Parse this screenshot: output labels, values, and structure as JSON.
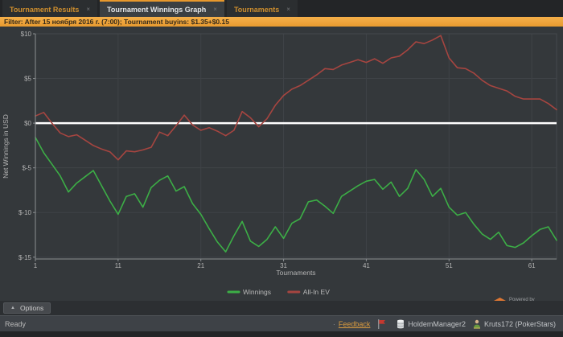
{
  "tabs": [
    {
      "label": "Tournament Results",
      "close": "×",
      "active": false
    },
    {
      "label": "Tournament Winnings Graph",
      "close": "×",
      "active": true
    },
    {
      "label": "Tournaments",
      "close": "×",
      "active": false
    }
  ],
  "filter_bar": {
    "text": "Filter: After 15 ноября 2016 г. (7:00); Tournament buyins: $1.35+$0.15"
  },
  "chart_data": {
    "type": "line",
    "title": "",
    "xlabel": "Tournaments",
    "ylabel": "Net Winnings in USD",
    "xlim": [
      1,
      64
    ],
    "ylim": [
      -15.2,
      10
    ],
    "x_ticks": [
      1,
      11,
      21,
      31,
      41,
      51,
      61
    ],
    "y_ticks": [
      {
        "v": 10,
        "label": "$10"
      },
      {
        "v": 5,
        "label": "$5"
      },
      {
        "v": 0,
        "label": "$0"
      },
      {
        "v": -5,
        "label": "$-5"
      },
      {
        "v": -10,
        "label": "$-10"
      },
      {
        "v": -15,
        "label": "$-15"
      }
    ],
    "zero_line": {
      "v": 0,
      "color": "#ffffff"
    },
    "grid": true,
    "legend_position": "bottom",
    "background": "#34383b",
    "grid_color": "#3f4347",
    "axis_color": "#8b8f92",
    "tick_text_color": "#b4b4b4",
    "series": [
      {
        "name": "Winnings",
        "color": "#3cae46",
        "values": [
          -1.6,
          -3.3,
          -4.6,
          -5.9,
          -7.7,
          -6.7,
          -6.0,
          -5.3,
          -7.0,
          -8.7,
          -10.2,
          -8.2,
          -7.9,
          -9.4,
          -7.2,
          -6.4,
          -5.9,
          -7.6,
          -7.1,
          -9.0,
          -10.2,
          -11.8,
          -13.3,
          -14.4,
          -12.6,
          -11.0,
          -13.2,
          -13.8,
          -13.0,
          -11.6,
          -12.9,
          -11.2,
          -10.7,
          -8.8,
          -8.6,
          -9.3,
          -10.1,
          -8.2,
          -7.6,
          -7.0,
          -6.5,
          -6.3,
          -7.4,
          -6.6,
          -8.2,
          -7.3,
          -5.2,
          -6.3,
          -8.2,
          -7.3,
          -9.4,
          -10.3,
          -10.0,
          -11.3,
          -12.4,
          -13.0,
          -12.2,
          -13.7,
          -13.9,
          -13.4,
          -12.6,
          -11.9,
          -11.6,
          -13.1
        ]
      },
      {
        "name": "All-In EV",
        "color": "#a64540",
        "values": [
          0.8,
          1.2,
          0.0,
          -1.1,
          -1.5,
          -1.3,
          -1.9,
          -2.5,
          -2.9,
          -3.2,
          -4.1,
          -3.1,
          -3.2,
          -3.0,
          -2.7,
          -1.0,
          -1.4,
          -0.3,
          0.9,
          -0.2,
          -0.8,
          -0.5,
          -0.9,
          -1.4,
          -0.8,
          1.3,
          0.6,
          -0.4,
          0.5,
          2.0,
          3.1,
          3.8,
          4.2,
          4.8,
          5.4,
          6.1,
          6.0,
          6.5,
          6.8,
          7.1,
          6.8,
          7.2,
          6.7,
          7.3,
          7.5,
          8.2,
          9.1,
          8.9,
          9.3,
          9.8,
          7.3,
          6.2,
          6.1,
          5.6,
          4.8,
          4.2,
          3.9,
          3.6,
          3.0,
          2.7,
          2.7,
          2.7,
          2.2,
          1.5
        ]
      }
    ]
  },
  "powered_by": {
    "badge": "2",
    "line1": "Powered by",
    "line2": "Hold'em Manager"
  },
  "options_row": {
    "arrow": "▲",
    "label": "Options"
  },
  "status_bar": {
    "ready": "Ready",
    "bullet": "·",
    "feedback": "Feedback",
    "database": "HoldemManager2",
    "account": "Kruts172 (PokerStars)"
  },
  "colors": {
    "accent_orange": "#efa93c",
    "tab_orange": "#cf8f2e",
    "winnings_green": "#3cae46",
    "ev_red": "#a64540"
  }
}
